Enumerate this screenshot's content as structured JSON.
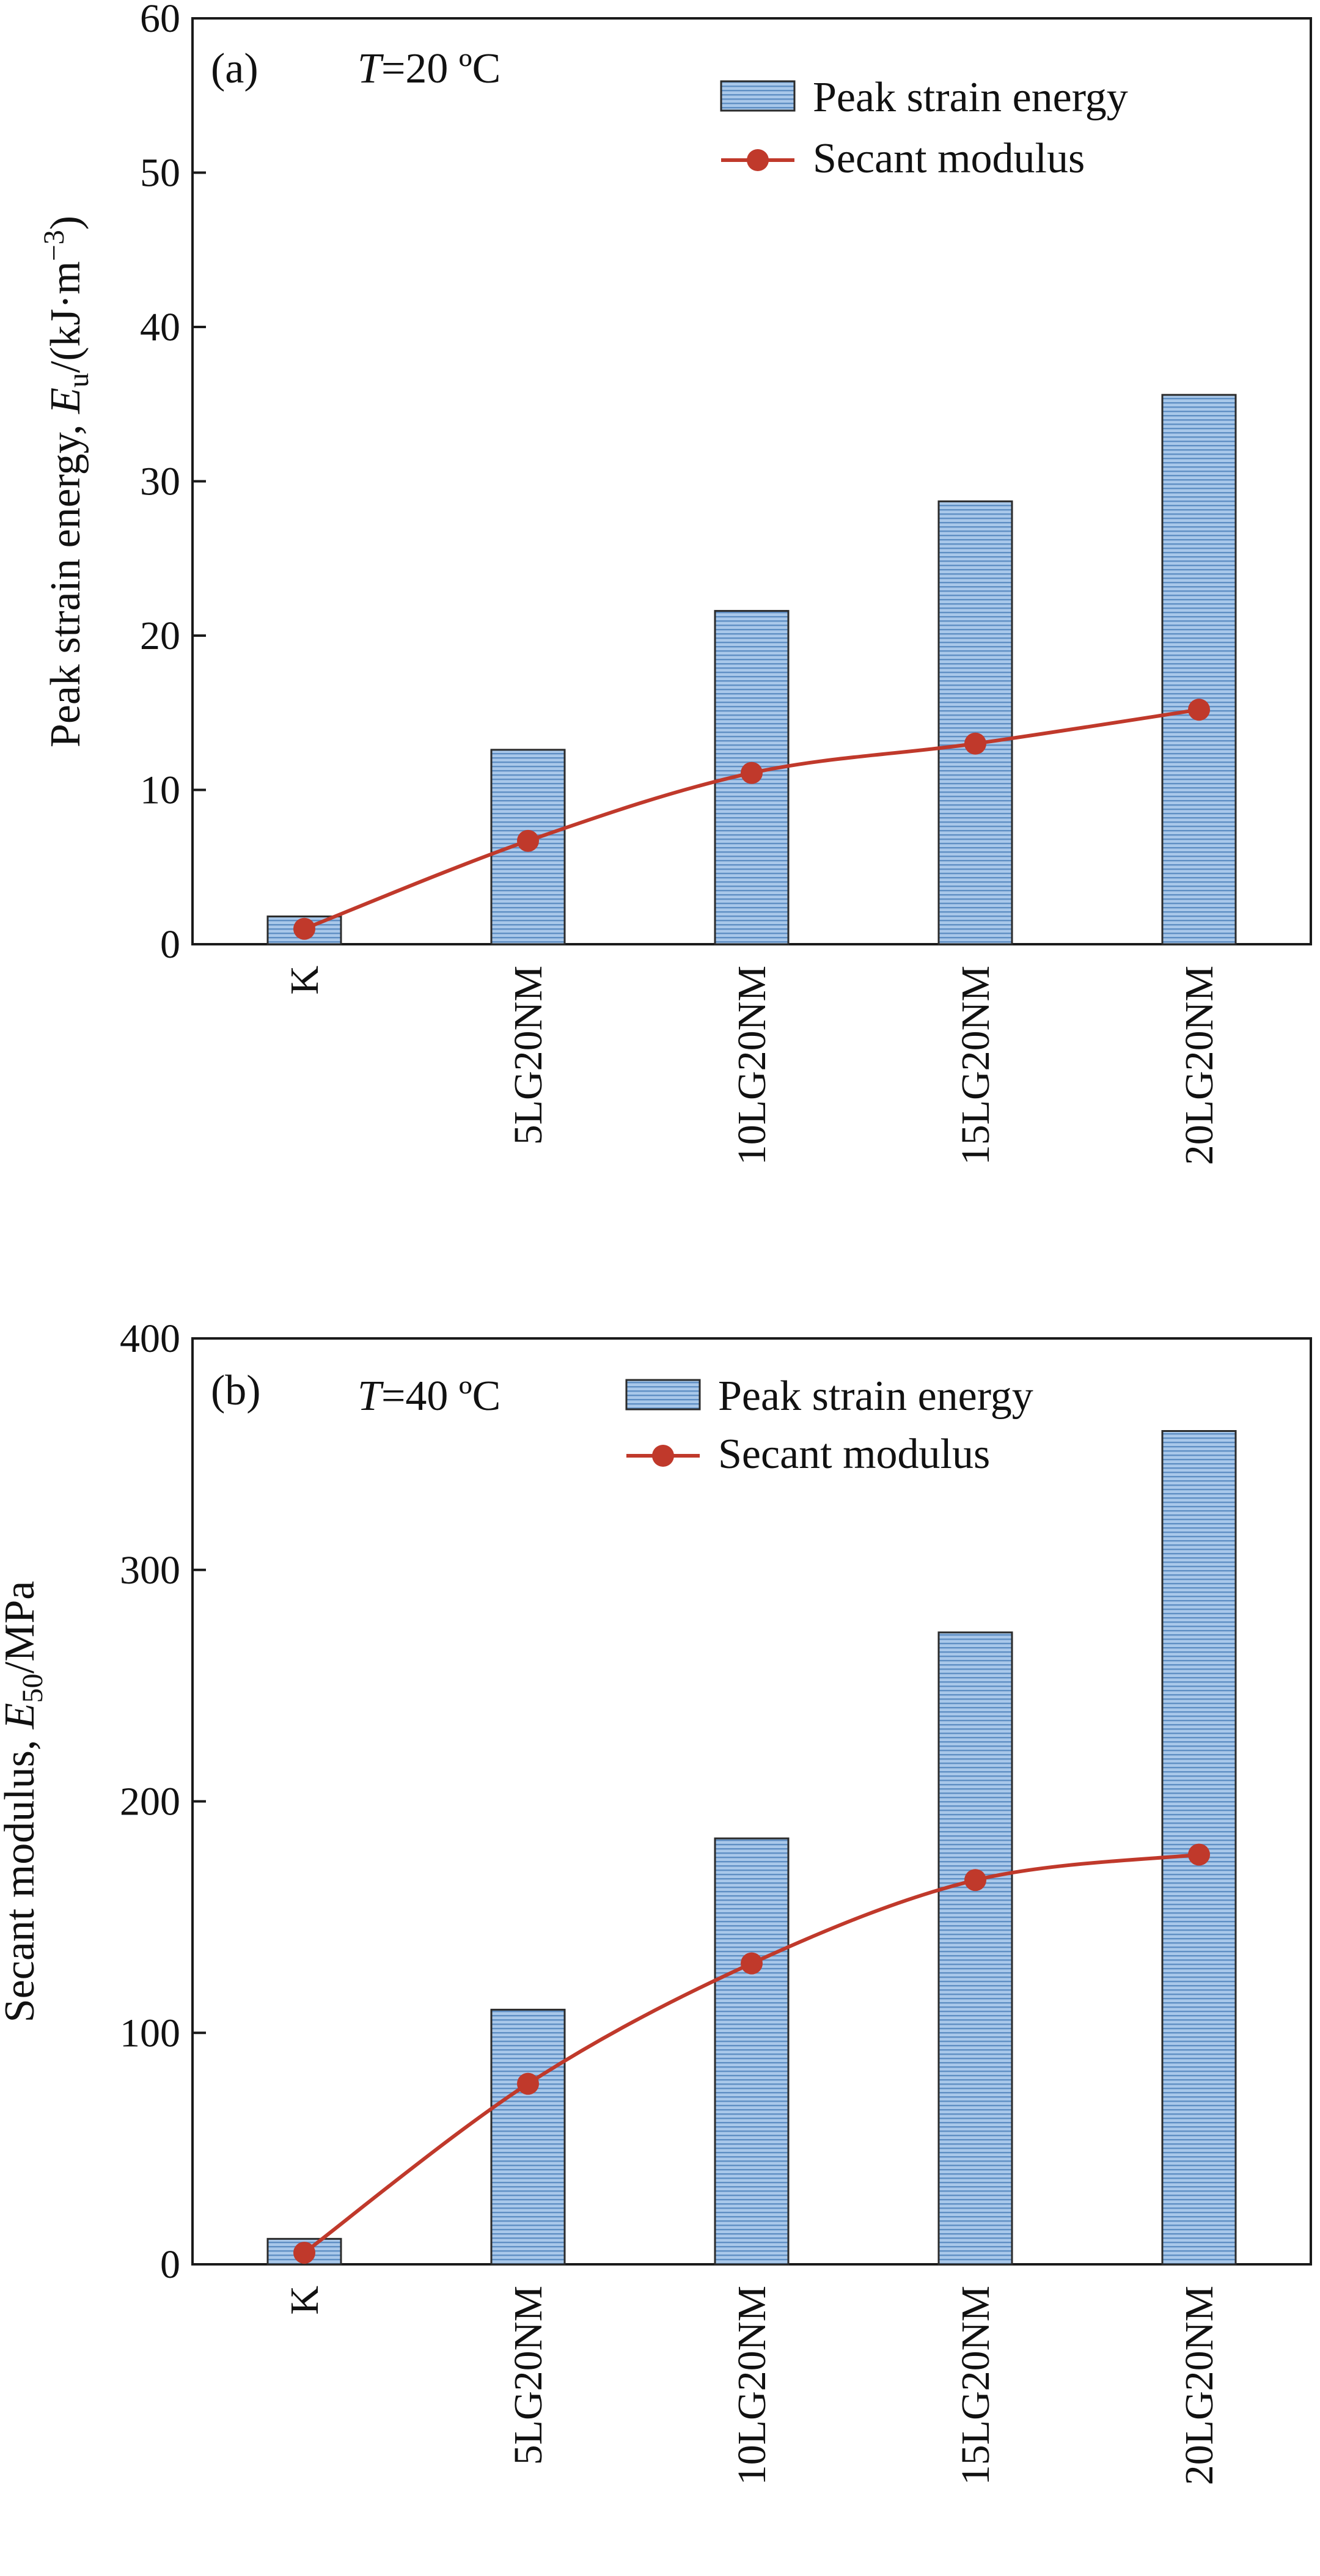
{
  "chart_data": [
    {
      "type": "bar",
      "panel_label": "(a)",
      "condition_symbol": "T",
      "condition_value": "=20 ºC",
      "categories": [
        "K",
        "5LG20NM",
        "10LG20NM",
        "15LG20NM",
        "20LG20NM"
      ],
      "series": [
        {
          "name": "Peak strain energy",
          "kind": "bar",
          "values": [
            1.8,
            12.6,
            21.6,
            28.7,
            35.6
          ]
        },
        {
          "name": "Secant modulus",
          "kind": "line",
          "values": [
            1.0,
            6.7,
            11.1,
            13.0,
            15.2
          ]
        }
      ],
      "ylabel_main": "Peak strain energy, ",
      "ylabel_var": "E",
      "ylabel_sub": "u",
      "ylabel_unit": "/(kJ·m",
      "ylabel_sup": "−3",
      "ylabel_close": ")",
      "ylim": [
        0,
        60
      ],
      "yticks": [
        "0",
        "10",
        "20",
        "30",
        "40",
        "50",
        "60"
      ],
      "grid": false,
      "legend_position": "top-right",
      "colors": {
        "bar_fill": "#a9c8ea",
        "bar_stripe": "#5f8fc4",
        "bar_edge": "#2b2b2b",
        "line": "#c0392b"
      }
    },
    {
      "type": "bar",
      "panel_label": "(b)",
      "condition_symbol": "T",
      "condition_value": "=40 ºC",
      "categories": [
        "K",
        "5LG20NM",
        "10LG20NM",
        "15LG20NM",
        "20LG20NM"
      ],
      "series": [
        {
          "name": "Peak strain energy",
          "kind": "bar",
          "values": [
            11,
            110,
            184,
            273,
            360
          ]
        },
        {
          "name": "Secant modulus",
          "kind": "line",
          "values": [
            5,
            78,
            130,
            166,
            177
          ]
        }
      ],
      "ylabel_main": "Secant modulus, ",
      "ylabel_var": "E",
      "ylabel_sub": "50",
      "ylabel_unit": "/MPa",
      "ylabel_sup": "",
      "ylabel_close": "",
      "ylim": [
        0,
        400
      ],
      "yticks": [
        "0",
        "100",
        "200",
        "300",
        "400"
      ],
      "grid": false,
      "legend_position": "top-right",
      "colors": {
        "bar_fill": "#a9c8ea",
        "bar_stripe": "#5f8fc4",
        "bar_edge": "#2b2b2b",
        "line": "#c0392b"
      }
    }
  ]
}
